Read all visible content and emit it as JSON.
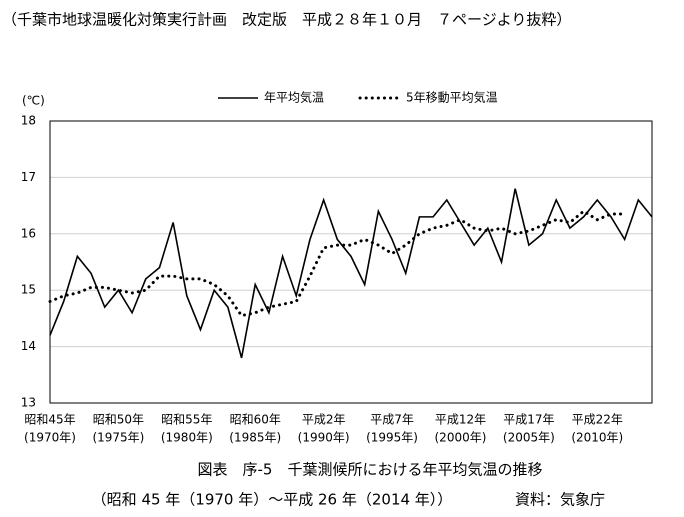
{
  "header": "（千葉市地球温暖化対策実行計画　改定版　平成２８年１０月　７ページより抜粋）",
  "chart_data": {
    "type": "line",
    "ylabel": "(℃)",
    "categories": [
      {
        "label": "昭和45年",
        "sub": "(1970年)"
      },
      null,
      null,
      null,
      null,
      {
        "label": "昭和50年",
        "sub": "(1975年)"
      },
      null,
      null,
      null,
      null,
      {
        "label": "昭和55年",
        "sub": "(1980年)"
      },
      null,
      null,
      null,
      null,
      {
        "label": "昭和60年",
        "sub": "(1985年)"
      },
      null,
      null,
      null,
      null,
      {
        "label": "平成2年",
        "sub": "(1990年)"
      },
      null,
      null,
      null,
      null,
      {
        "label": "平成7年",
        "sub": "(1995年)"
      },
      null,
      null,
      null,
      null,
      {
        "label": "平成12年",
        "sub": "(2000年)"
      },
      null,
      null,
      null,
      null,
      {
        "label": "平成17年",
        "sub": "(2005年)"
      },
      null,
      null,
      null,
      null,
      {
        "label": "平成22年",
        "sub": "(2010年)"
      },
      null,
      null,
      null,
      null
    ],
    "series": [
      {
        "name": "年平均気温",
        "color": "#000000",
        "style": "solid",
        "values": [
          14.2,
          14.8,
          15.6,
          15.3,
          14.7,
          15.0,
          14.6,
          15.2,
          15.4,
          16.2,
          14.9,
          14.3,
          15.0,
          14.7,
          13.8,
          15.1,
          14.6,
          15.6,
          14.9,
          15.9,
          16.6,
          15.9,
          15.6,
          15.1,
          16.4,
          15.9,
          15.3,
          16.3,
          16.3,
          16.6,
          16.2,
          15.8,
          16.1,
          15.5,
          16.8,
          15.8,
          16.0,
          16.6,
          16.1,
          16.3,
          16.6,
          16.3,
          15.9,
          16.6,
          16.3
        ]
      },
      {
        "name": "5年移動平均気温",
        "color": "#000000",
        "style": "dotted",
        "values": [
          14.8,
          14.9,
          14.95,
          15.05,
          15.05,
          15.0,
          14.95,
          15.0,
          15.25,
          15.25,
          15.2,
          15.2,
          15.1,
          14.9,
          14.55,
          14.6,
          14.7,
          14.75,
          14.8,
          15.25,
          15.75,
          15.8,
          15.8,
          15.9,
          15.8,
          15.65,
          15.8,
          16.0,
          16.1,
          16.15,
          16.25,
          16.1,
          16.05,
          16.1,
          16.0,
          16.05,
          16.15,
          16.25,
          16.2,
          16.4,
          16.25,
          16.35,
          16.35,
          null,
          null
        ]
      }
    ],
    "ylim": [
      13,
      18
    ],
    "yticks": [
      13,
      14,
      15,
      16,
      17,
      18
    ],
    "grid": true,
    "legend": "top"
  },
  "caption": {
    "title": "図表　序-5　千葉測候所における年平均気温の推移",
    "period": "（昭和 45 年（1970 年）～平成 26 年（2014 年））",
    "source": "資料：気象庁"
  }
}
